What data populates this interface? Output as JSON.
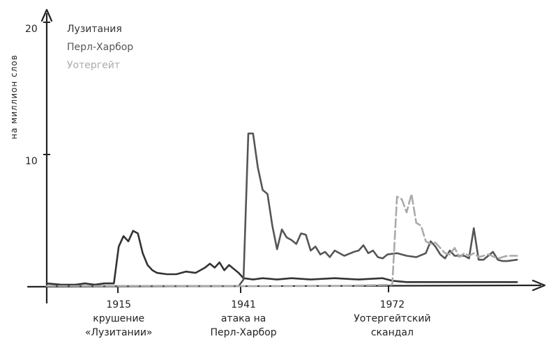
{
  "chart_data": {
    "type": "line",
    "title": "",
    "ylabel": "на миллион слов",
    "xlabel": "",
    "ylim": [
      0,
      20
    ],
    "xlim": [
      1900,
      2000
    ],
    "yticks": [
      "10",
      "20"
    ],
    "grid": false,
    "legend_position": "top-left",
    "series": [
      {
        "name": "Лузитания",
        "color": "#333333",
        "dashed": false,
        "points": [
          [
            1900,
            0.2
          ],
          [
            1903,
            0.1
          ],
          [
            1906,
            0.1
          ],
          [
            1908,
            0.2
          ],
          [
            1910,
            0.1
          ],
          [
            1912,
            0.2
          ],
          [
            1914,
            0.2
          ],
          [
            1915,
            3.0
          ],
          [
            1916,
            3.8
          ],
          [
            1917,
            3.4
          ],
          [
            1918,
            4.2
          ],
          [
            1919,
            4.0
          ],
          [
            1920,
            2.5
          ],
          [
            1921,
            1.6
          ],
          [
            1922,
            1.2
          ],
          [
            1923,
            1.0
          ],
          [
            1925,
            0.9
          ],
          [
            1927,
            0.9
          ],
          [
            1929,
            1.1
          ],
          [
            1931,
            1.0
          ],
          [
            1933,
            1.4
          ],
          [
            1934,
            1.7
          ],
          [
            1935,
            1.4
          ],
          [
            1936,
            1.8
          ],
          [
            1937,
            1.2
          ],
          [
            1938,
            1.6
          ],
          [
            1940,
            1.0
          ],
          [
            1941,
            0.6
          ],
          [
            1943,
            0.5
          ],
          [
            1945,
            0.6
          ],
          [
            1948,
            0.5
          ],
          [
            1951,
            0.6
          ],
          [
            1955,
            0.5
          ],
          [
            1960,
            0.6
          ],
          [
            1965,
            0.5
          ],
          [
            1970,
            0.6
          ],
          [
            1972,
            0.4
          ],
          [
            1975,
            0.3
          ],
          [
            1980,
            0.3
          ],
          [
            1985,
            0.3
          ],
          [
            1990,
            0.3
          ],
          [
            1995,
            0.3
          ],
          [
            1998,
            0.3
          ]
        ]
      },
      {
        "name": "Перл-Харбор",
        "color": "#555555",
        "dashed": false,
        "points": [
          [
            1900,
            0.0
          ],
          [
            1910,
            0.0
          ],
          [
            1920,
            0.0
          ],
          [
            1930,
            0.0
          ],
          [
            1940,
            0.0
          ],
          [
            1941,
            0.5
          ],
          [
            1942,
            11.6
          ],
          [
            1943,
            11.6
          ],
          [
            1944,
            9.0
          ],
          [
            1945,
            7.3
          ],
          [
            1946,
            7.0
          ],
          [
            1947,
            4.6
          ],
          [
            1948,
            2.8
          ],
          [
            1949,
            4.3
          ],
          [
            1950,
            3.7
          ],
          [
            1951,
            3.5
          ],
          [
            1952,
            3.2
          ],
          [
            1953,
            4.0
          ],
          [
            1954,
            3.9
          ],
          [
            1955,
            2.7
          ],
          [
            1956,
            3.0
          ],
          [
            1957,
            2.4
          ],
          [
            1958,
            2.6
          ],
          [
            1959,
            2.2
          ],
          [
            1960,
            2.7
          ],
          [
            1962,
            2.3
          ],
          [
            1964,
            2.6
          ],
          [
            1965,
            2.7
          ],
          [
            1966,
            3.1
          ],
          [
            1967,
            2.5
          ],
          [
            1968,
            2.7
          ],
          [
            1969,
            2.2
          ],
          [
            1970,
            2.1
          ],
          [
            1971,
            2.4
          ],
          [
            1973,
            2.5
          ],
          [
            1975,
            2.3
          ],
          [
            1977,
            2.2
          ],
          [
            1979,
            2.5
          ],
          [
            1980,
            3.4
          ],
          [
            1981,
            3.0
          ],
          [
            1982,
            2.4
          ],
          [
            1983,
            2.1
          ],
          [
            1984,
            2.7
          ],
          [
            1985,
            2.3
          ],
          [
            1987,
            2.3
          ],
          [
            1988,
            2.1
          ],
          [
            1989,
            4.4
          ],
          [
            1990,
            2.0
          ],
          [
            1991,
            2.0
          ],
          [
            1992,
            2.3
          ],
          [
            1993,
            2.6
          ],
          [
            1994,
            2.0
          ],
          [
            1995,
            1.9
          ],
          [
            1996,
            1.9
          ],
          [
            1998,
            2.0
          ]
        ]
      },
      {
        "name": "Уотергейт",
        "color": "#aaaaaa",
        "dashed": true,
        "points": [
          [
            1900,
            0.0
          ],
          [
            1920,
            0.0
          ],
          [
            1940,
            0.0
          ],
          [
            1960,
            0.0
          ],
          [
            1972,
            0.1
          ],
          [
            1973,
            6.8
          ],
          [
            1974,
            6.6
          ],
          [
            1975,
            5.6
          ],
          [
            1976,
            7.0
          ],
          [
            1977,
            4.8
          ],
          [
            1978,
            4.6
          ],
          [
            1979,
            3.4
          ],
          [
            1980,
            3.2
          ],
          [
            1981,
            3.3
          ],
          [
            1982,
            2.9
          ],
          [
            1983,
            2.5
          ],
          [
            1984,
            2.4
          ],
          [
            1985,
            2.9
          ],
          [
            1986,
            2.2
          ],
          [
            1987,
            2.5
          ],
          [
            1988,
            2.3
          ],
          [
            1989,
            2.5
          ],
          [
            1990,
            2.2
          ],
          [
            1992,
            2.4
          ],
          [
            1994,
            2.1
          ],
          [
            1996,
            2.3
          ],
          [
            1998,
            2.3
          ]
        ]
      }
    ],
    "annotations": [
      {
        "x": 1915,
        "lines": [
          "1915",
          "крушение",
          "«Лузитании»"
        ]
      },
      {
        "x": 1941,
        "lines": [
          "1941",
          "атака на",
          "Перл-Харбор"
        ]
      },
      {
        "x": 1972,
        "lines": [
          "1972",
          "Уотергейтский",
          "скандал"
        ]
      }
    ]
  }
}
